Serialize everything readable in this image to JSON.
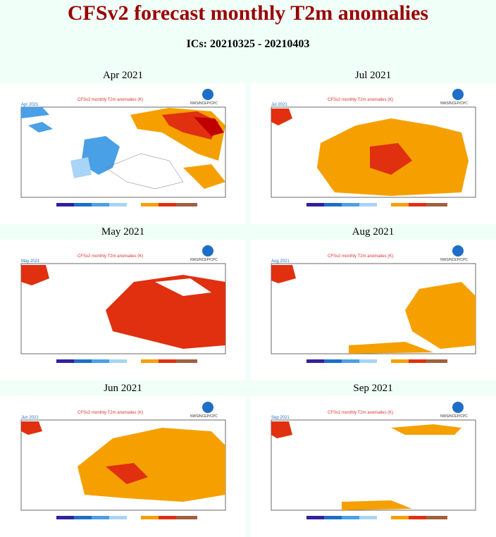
{
  "page": {
    "title": "CFSv2 forecast monthly T2m anomalies",
    "ics": "ICs: 20210325 - 20210403"
  },
  "panel_header": {
    "title": "CFSv2 monthly T2m anomalies (K)",
    "credit": "NWS/NCEP/CPC",
    "noaa_logo": "NOAA"
  },
  "colors": {
    "cold_strong": "#1e6ec8",
    "cold": "#4aa0e6",
    "cool": "#a8d4f5",
    "warm": "#f5a000",
    "warmer": "#e03010",
    "hot": "#c00000",
    "title_red": "#990000"
  },
  "panels": [
    {
      "label": "Apr 2021",
      "tag": "Apr 2021",
      "anomaly_summary": "cold"
    },
    {
      "label": "Jul 2021",
      "tag": "Jul 2021",
      "anomaly_summary": "warm"
    },
    {
      "label": "May 2021",
      "tag": "May 2021",
      "anomaly_summary": "hot_east"
    },
    {
      "label": "Aug 2021",
      "tag": "Aug 2021",
      "anomaly_summary": "warm_east"
    },
    {
      "label": "Jun 2021",
      "tag": "Jun 2021",
      "anomaly_summary": "warm"
    },
    {
      "label": "Sep 2021",
      "tag": "Sep 2021",
      "anomaly_summary": "neutral"
    }
  ]
}
